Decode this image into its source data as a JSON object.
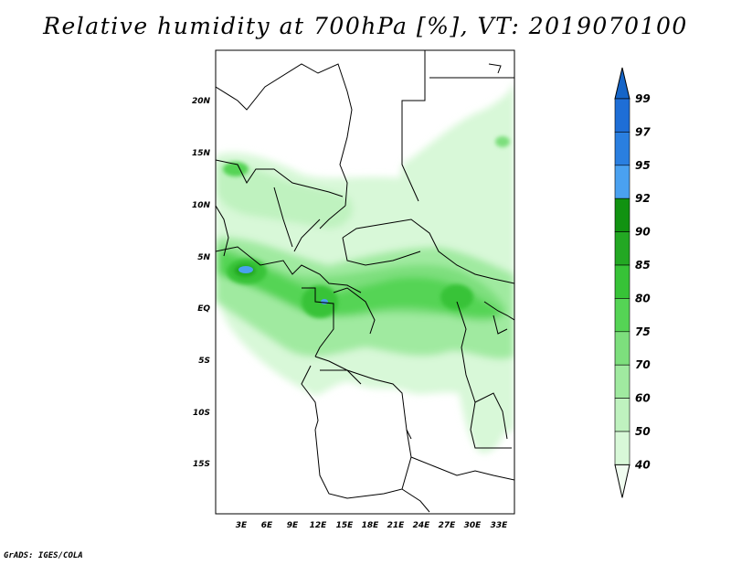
{
  "title": "Relative humidity at 700hPa [%], VT: 2019070100",
  "credit": "GrADS: IGES/COLA",
  "map": {
    "lat_labels": [
      "20N",
      "15N",
      "10N",
      "5N",
      "EQ",
      "5S",
      "10S",
      "15S"
    ],
    "lon_labels": [
      "3E",
      "6E",
      "9E",
      "12E",
      "15E",
      "18E",
      "21E",
      "24E",
      "27E",
      "30E",
      "33E"
    ]
  },
  "colorbar": {
    "labels": [
      "99",
      "97",
      "95",
      "92",
      "90",
      "85",
      "80",
      "75",
      "70",
      "60",
      "50",
      "40"
    ],
    "colors": [
      "#1e6ed6",
      "#2a7fe0",
      "#4aa1f0",
      "#119211",
      "#23a823",
      "#37c337",
      "#55d455",
      "#7ddf7d",
      "#a0eaa0",
      "#bff2bf",
      "#d8f8d8",
      "#f0fcf0"
    ]
  }
}
